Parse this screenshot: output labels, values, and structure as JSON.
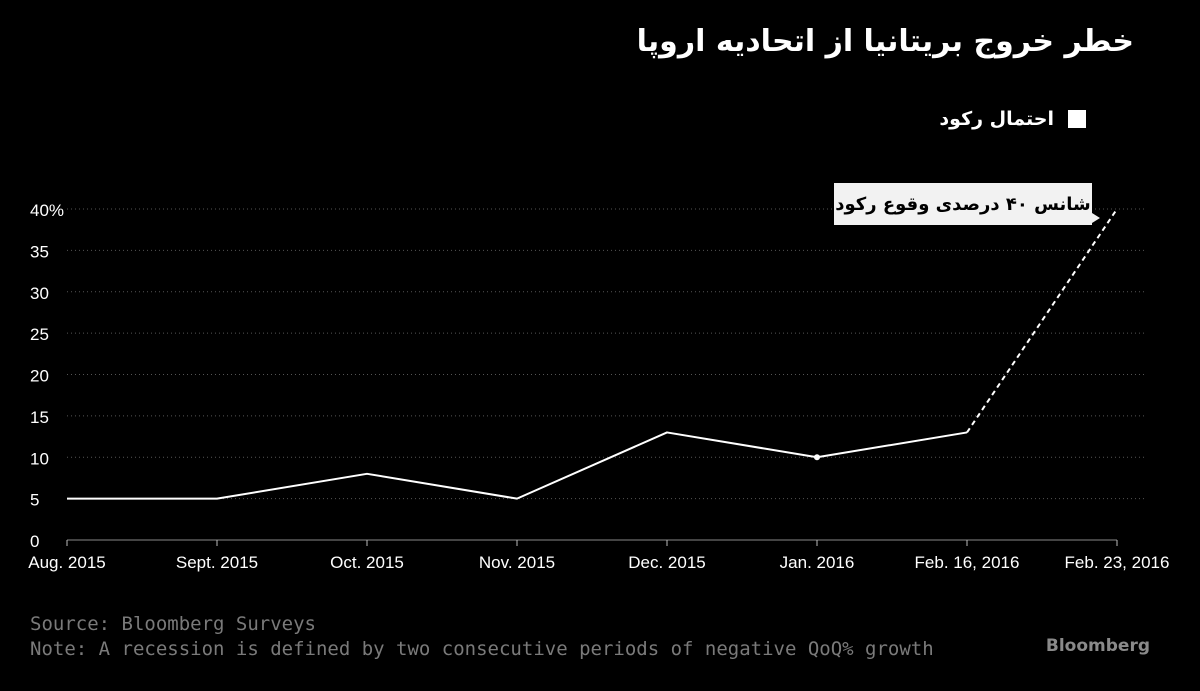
{
  "title": "خطر خروج بریتانیا از اتحادیه اروپا",
  "legend": {
    "label": "احتمال رکود"
  },
  "annotation": {
    "text": "شانس ۴۰ درصدی وقوع رکود"
  },
  "footer": {
    "source": "Source: Bloomberg Surveys",
    "note": "Note: A recession is defined by two consecutive periods of negative QoQ% growth"
  },
  "brand": "Bloomberg",
  "colors": {
    "background": "#000000",
    "line": "#ffffff",
    "grid": "#555555",
    "footer_text": "#7a7a7a"
  },
  "chart_data": {
    "type": "line",
    "categories": [
      "Aug. 2015",
      "Sept. 2015",
      "Oct. 2015",
      "Nov. 2015",
      "Dec. 2015",
      "Jan. 2016",
      "Feb. 16, 2016",
      "Feb. 23, 2016"
    ],
    "series": [
      {
        "name": "احتمال رکود",
        "values": [
          5,
          5,
          8,
          5,
          13,
          10,
          13,
          40
        ],
        "dashed_last_segment": true
      }
    ],
    "marked_point": "Jan. 2016",
    "ylim": [
      0,
      40
    ],
    "yticks": [
      0,
      5,
      10,
      15,
      20,
      25,
      30,
      35,
      40
    ],
    "ytick_labels": [
      "0",
      "5",
      "10",
      "15",
      "20",
      "25",
      "30",
      "35",
      "40%"
    ],
    "grid": "horizontal dotted",
    "legend_position": "top-right"
  }
}
